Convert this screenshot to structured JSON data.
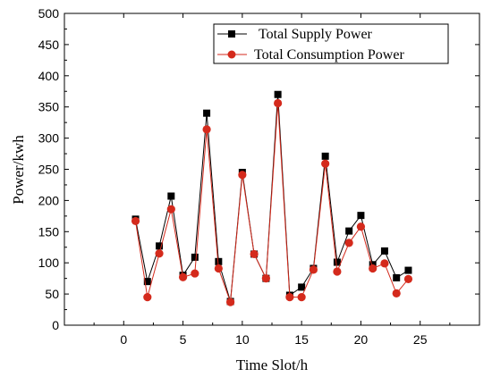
{
  "chart_data": {
    "type": "line",
    "title": "",
    "xlabel": "Time Slot/h",
    "ylabel": "Power/kwh",
    "xlim": [
      -5,
      30
    ],
    "ylim": [
      0,
      500
    ],
    "x_ticks": [
      0,
      5,
      10,
      15,
      20,
      25
    ],
    "y_ticks": [
      0,
      50,
      100,
      150,
      200,
      250,
      300,
      350,
      400,
      450,
      500
    ],
    "grid": false,
    "legend_position": "top-right",
    "x": [
      1,
      2,
      3,
      4,
      5,
      6,
      7,
      8,
      9,
      10,
      11,
      12,
      13,
      14,
      15,
      16,
      17,
      18,
      19,
      20,
      21,
      22,
      23,
      24
    ],
    "series": [
      {
        "name": "Total Supply Power",
        "color": "#000000",
        "marker": "square",
        "values": [
          170,
          70,
          127,
          207,
          80,
          109,
          340,
          102,
          38,
          245,
          114,
          75,
          370,
          48,
          61,
          91,
          271,
          101,
          151,
          176,
          97,
          119,
          76,
          88
        ]
      },
      {
        "name": "Total Consumption Power",
        "color": "#d42a1c",
        "marker": "circle",
        "values": [
          167,
          45,
          115,
          186,
          77,
          83,
          314,
          91,
          37,
          241,
          114,
          75,
          356,
          45,
          45,
          89,
          259,
          86,
          132,
          158,
          91,
          99,
          51,
          74
        ]
      }
    ]
  }
}
